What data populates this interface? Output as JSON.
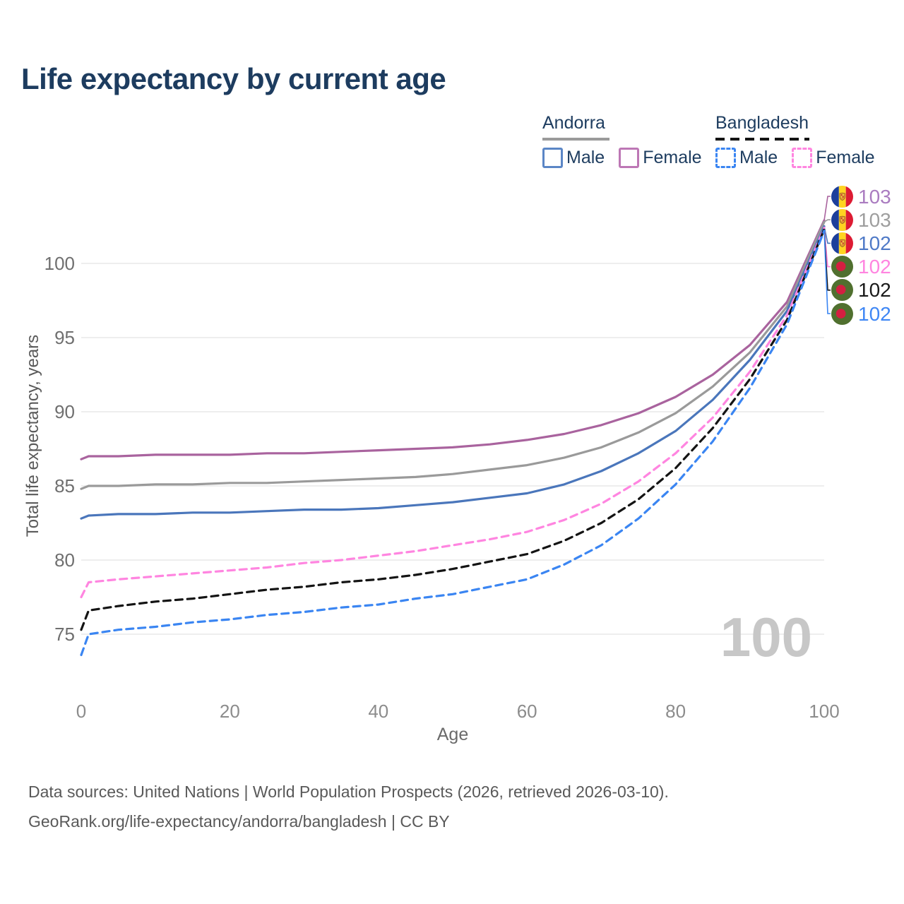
{
  "title": "Life expectancy by current age",
  "watermark": "100",
  "legend": {
    "groups": [
      {
        "country": "Andorra",
        "underline_style": "solid",
        "underline_color": "#9a9a9a",
        "underline_width": 95,
        "items": [
          {
            "label": "Male",
            "color": "#5b86c6",
            "dashed": false
          },
          {
            "label": "Female",
            "color": "#bd77b5",
            "dashed": false
          }
        ]
      },
      {
        "country": "Bangladesh",
        "underline_style": "dashed",
        "underline_color": "#141414",
        "underline_width": 133,
        "items": [
          {
            "label": "Male",
            "color": "#3a85f2",
            "dashed": true
          },
          {
            "label": "Female",
            "color": "#ff85e0",
            "dashed": true
          }
        ]
      }
    ]
  },
  "chart_data": {
    "type": "line",
    "title": "Life expectancy by current age",
    "xlabel": "Age",
    "ylabel": "Total life expectancy, years",
    "x_ticks": [
      0,
      20,
      40,
      60,
      80,
      100
    ],
    "y_ticks": [
      75,
      80,
      85,
      90,
      95,
      100
    ],
    "xlim": [
      0,
      100
    ],
    "ylim": [
      73,
      104
    ],
    "grid": "horizontal-only",
    "legend_position": "top-right",
    "hover_age_readout": "100",
    "ages": [
      0,
      1,
      5,
      10,
      15,
      20,
      25,
      30,
      35,
      40,
      45,
      50,
      55,
      60,
      65,
      70,
      75,
      80,
      85,
      90,
      95,
      100
    ],
    "series": [
      {
        "name": "Andorra Female",
        "country": "Andorra",
        "sex": "Female",
        "line_style": "solid",
        "color": "#a9639e",
        "flag": "andorra",
        "end_label": "103",
        "end_label_color": "#aa7cc0",
        "values": [
          86.8,
          87.0,
          87.0,
          87.1,
          87.1,
          87.1,
          87.2,
          87.2,
          87.3,
          87.4,
          87.5,
          87.6,
          87.8,
          88.1,
          88.5,
          89.1,
          89.9,
          91.0,
          92.5,
          94.5,
          97.4,
          102.9
        ]
      },
      {
        "name": "Andorra All",
        "country": "Andorra",
        "sex": "All",
        "line_style": "solid",
        "color": "#9a9a9a",
        "flag": "andorra",
        "end_label": "103",
        "end_label_color": "#9e9e9e",
        "values": [
          84.8,
          85.0,
          85.0,
          85.1,
          85.1,
          85.2,
          85.2,
          85.3,
          85.4,
          85.5,
          85.6,
          85.8,
          86.1,
          86.4,
          86.9,
          87.6,
          88.6,
          89.9,
          91.7,
          94.0,
          97.1,
          102.8
        ]
      },
      {
        "name": "Andorra Male",
        "country": "Andorra",
        "sex": "Male",
        "line_style": "solid",
        "color": "#4a76bb",
        "flag": "andorra",
        "end_label": "102",
        "end_label_color": "#4f7ac7",
        "values": [
          82.8,
          83.0,
          83.1,
          83.1,
          83.2,
          83.2,
          83.3,
          83.4,
          83.4,
          83.5,
          83.7,
          83.9,
          84.2,
          84.5,
          85.1,
          86.0,
          87.2,
          88.7,
          90.8,
          93.5,
          96.8,
          102.5
        ]
      },
      {
        "name": "Bangladesh Female",
        "country": "Bangladesh",
        "sex": "Female",
        "line_style": "dashed",
        "color": "#ff85e0",
        "flag": "bangladesh",
        "end_label": "102",
        "end_label_color": "#ff85e0",
        "values": [
          77.5,
          78.5,
          78.7,
          78.9,
          79.1,
          79.3,
          79.5,
          79.8,
          80.0,
          80.3,
          80.6,
          81.0,
          81.4,
          81.9,
          82.7,
          83.8,
          85.3,
          87.2,
          89.6,
          92.7,
          96.5,
          102.4
        ]
      },
      {
        "name": "Bangladesh All",
        "country": "Bangladesh",
        "sex": "All",
        "line_style": "dashed",
        "color": "#141414",
        "flag": "bangladesh",
        "end_label": "102",
        "end_label_color": "#1a1a1a",
        "values": [
          75.3,
          76.6,
          76.9,
          77.2,
          77.4,
          77.7,
          78.0,
          78.2,
          78.5,
          78.7,
          79.0,
          79.4,
          79.9,
          80.4,
          81.3,
          82.5,
          84.1,
          86.2,
          88.9,
          92.2,
          96.2,
          102.3
        ]
      },
      {
        "name": "Bangladesh Male",
        "country": "Bangladesh",
        "sex": "Male",
        "line_style": "dashed",
        "color": "#3a85f2",
        "flag": "bangladesh",
        "end_label": "102",
        "end_label_color": "#3f87f5",
        "values": [
          73.6,
          75.0,
          75.3,
          75.5,
          75.8,
          76.0,
          76.3,
          76.5,
          76.8,
          77.0,
          77.4,
          77.7,
          78.2,
          78.7,
          79.7,
          81.0,
          82.8,
          85.1,
          88.0,
          91.6,
          95.9,
          102.2
        ]
      }
    ]
  },
  "footer": {
    "line1": "Data sources: United Nations | World Population Prospects (2026, retrieved 2026-03-10).",
    "line2": "GeoRank.org/life-expectancy/andorra/bangladesh | CC BY"
  }
}
